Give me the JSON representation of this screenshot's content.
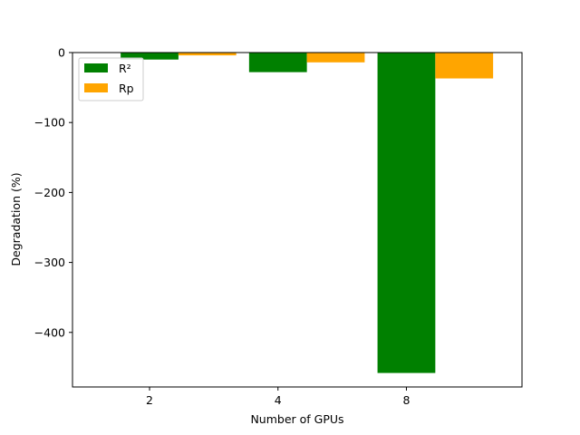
{
  "chart_data": {
    "type": "bar",
    "title": "",
    "xlabel": "Number of GPUs",
    "ylabel": "Degradation (%)",
    "categories": [
      "2",
      "4",
      "8"
    ],
    "series": [
      {
        "name": "R²",
        "color": "#008000",
        "values": [
          -10,
          -28,
          -458
        ]
      },
      {
        "name": "Rp",
        "color": "#FFA500",
        "values": [
          -4,
          -14,
          -37
        ]
      }
    ],
    "ylim": [
      -478,
      0
    ],
    "yticks": [
      0,
      -100,
      -200,
      -300,
      -400
    ],
    "ytick_labels": [
      "0",
      "−100",
      "−200",
      "−300",
      "−400"
    ],
    "legend_position": "top-left",
    "grid": false
  }
}
